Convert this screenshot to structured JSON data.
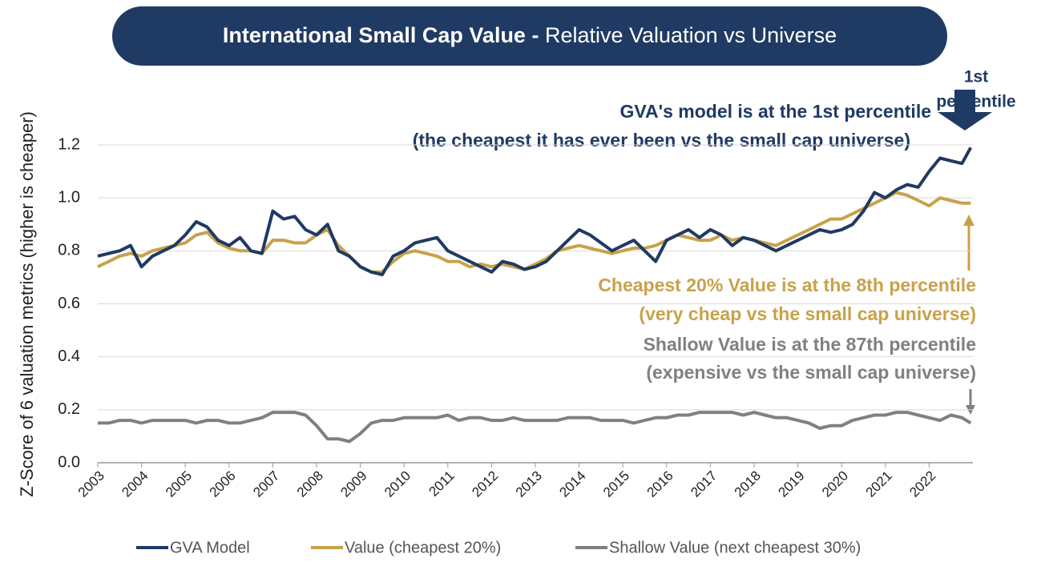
{
  "chart_data": {
    "type": "line",
    "title": "International Small Cap Value -",
    "subtitle": "Relative Valuation vs Universe",
    "y_label": "Z-Score of 6 valuation metrics (higher is cheaper)",
    "annotations": [
      "1st",
      "percentile",
      "GVA's model is at the 1st percentile",
      "(the cheapest it has ever been vs the small cap universe)",
      "Cheapest 20% Value is at the 8th percentile",
      "(very cheap vs the small cap universe)",
      "Shallow Value is at the 87th  percentile",
      "(expensive vs the small cap universe)"
    ],
    "x": [
      2003,
      2003.25,
      2003.5,
      2003.75,
      2004,
      2004.25,
      2004.5,
      2004.75,
      2005,
      2005.25,
      2005.5,
      2005.75,
      2006,
      2006.25,
      2006.5,
      2006.75,
      2007,
      2007.25,
      2007.5,
      2007.75,
      2008,
      2008.25,
      2008.5,
      2008.75,
      2009,
      2009.25,
      2009.5,
      2009.75,
      2010,
      2010.25,
      2010.5,
      2010.75,
      2011,
      2011.25,
      2011.5,
      2011.75,
      2012,
      2012.25,
      2012.5,
      2012.75,
      2013,
      2013.25,
      2013.5,
      2013.75,
      2014,
      2014.25,
      2014.5,
      2014.75,
      2015,
      2015.25,
      2015.5,
      2015.75,
      2016,
      2016.25,
      2016.5,
      2016.75,
      2017,
      2017.25,
      2017.5,
      2017.75,
      2018,
      2018.25,
      2018.5,
      2018.75,
      2019,
      2019.25,
      2019.5,
      2019.75,
      2020,
      2020.25,
      2020.5,
      2020.75,
      2021,
      2021.25,
      2021.5,
      2021.75,
      2022,
      2022.25,
      2022.5,
      2022.75,
      2022.95
    ],
    "series": [
      {
        "name": "GVA Model",
        "color": "#1f3a63",
        "values": [
          0.78,
          0.79,
          0.8,
          0.82,
          0.74,
          0.78,
          0.8,
          0.82,
          0.86,
          0.91,
          0.89,
          0.84,
          0.82,
          0.85,
          0.8,
          0.79,
          0.95,
          0.92,
          0.93,
          0.88,
          0.86,
          0.9,
          0.8,
          0.78,
          0.74,
          0.72,
          0.71,
          0.78,
          0.8,
          0.83,
          0.84,
          0.85,
          0.8,
          0.78,
          0.76,
          0.74,
          0.72,
          0.76,
          0.75,
          0.73,
          0.74,
          0.76,
          0.8,
          0.84,
          0.88,
          0.86,
          0.83,
          0.8,
          0.82,
          0.84,
          0.8,
          0.76,
          0.84,
          0.86,
          0.88,
          0.85,
          0.88,
          0.86,
          0.82,
          0.85,
          0.84,
          0.82,
          0.8,
          0.82,
          0.84,
          0.86,
          0.88,
          0.87,
          0.88,
          0.9,
          0.95,
          1.02,
          1.0,
          1.03,
          1.05,
          1.04,
          1.1,
          1.15,
          1.14,
          1.13,
          1.19
        ]
      },
      {
        "name": "Value (cheapest 20%)",
        "color": "#c8a24a",
        "values": [
          0.74,
          0.76,
          0.78,
          0.79,
          0.78,
          0.8,
          0.81,
          0.82,
          0.83,
          0.86,
          0.87,
          0.83,
          0.81,
          0.8,
          0.8,
          0.79,
          0.84,
          0.84,
          0.83,
          0.83,
          0.86,
          0.88,
          0.82,
          0.78,
          0.74,
          0.72,
          0.72,
          0.76,
          0.79,
          0.8,
          0.79,
          0.78,
          0.76,
          0.76,
          0.74,
          0.75,
          0.74,
          0.75,
          0.74,
          0.73,
          0.75,
          0.77,
          0.8,
          0.81,
          0.82,
          0.81,
          0.8,
          0.79,
          0.8,
          0.81,
          0.81,
          0.82,
          0.84,
          0.86,
          0.85,
          0.84,
          0.84,
          0.86,
          0.84,
          0.85,
          0.84,
          0.83,
          0.82,
          0.84,
          0.86,
          0.88,
          0.9,
          0.92,
          0.92,
          0.94,
          0.96,
          0.98,
          1.0,
          1.02,
          1.01,
          0.99,
          0.97,
          1.0,
          0.99,
          0.98,
          0.98
        ]
      },
      {
        "name": "Shallow Value (next cheapest 30%)",
        "color": "#808080",
        "values": [
          0.15,
          0.15,
          0.16,
          0.16,
          0.15,
          0.16,
          0.16,
          0.16,
          0.16,
          0.15,
          0.16,
          0.16,
          0.15,
          0.15,
          0.16,
          0.17,
          0.19,
          0.19,
          0.19,
          0.18,
          0.14,
          0.09,
          0.09,
          0.08,
          0.11,
          0.15,
          0.16,
          0.16,
          0.17,
          0.17,
          0.17,
          0.17,
          0.18,
          0.16,
          0.17,
          0.17,
          0.16,
          0.16,
          0.17,
          0.16,
          0.16,
          0.16,
          0.16,
          0.17,
          0.17,
          0.17,
          0.16,
          0.16,
          0.16,
          0.15,
          0.16,
          0.17,
          0.17,
          0.18,
          0.18,
          0.19,
          0.19,
          0.19,
          0.19,
          0.18,
          0.19,
          0.18,
          0.17,
          0.17,
          0.16,
          0.15,
          0.13,
          0.14,
          0.14,
          0.16,
          0.17,
          0.18,
          0.18,
          0.19,
          0.19,
          0.18,
          0.17,
          0.16,
          0.18,
          0.17,
          0.15
        ]
      }
    ],
    "xlim": [
      2003,
      2023
    ],
    "xticks": [
      2003,
      2004,
      2005,
      2006,
      2007,
      2008,
      2009,
      2010,
      2011,
      2012,
      2013,
      2014,
      2015,
      2016,
      2017,
      2018,
      2019,
      2020,
      2021,
      2022
    ],
    "ylim": [
      0,
      1.2
    ],
    "yticks": [
      {
        "value": 0,
        "label": "0.0"
      },
      {
        "value": 0.2,
        "label": "0.2"
      },
      {
        "value": 0.4,
        "label": "0.4"
      },
      {
        "value": 0.6,
        "label": "0.6"
      },
      {
        "value": 0.8,
        "label": "0.8"
      },
      {
        "value": 1.0,
        "label": "1.0"
      },
      {
        "value": 1.2,
        "label": "1.2"
      }
    ],
    "grid": true
  }
}
